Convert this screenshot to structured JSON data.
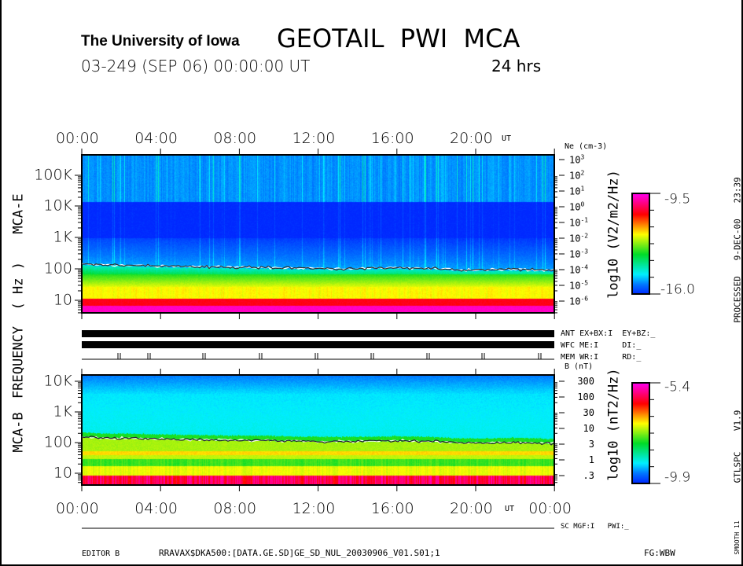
{
  "header": {
    "institution": "The University of Iowa",
    "title": "GEOTAIL  PWI  MCA",
    "date_line": "03-249 (SEP 06) 00:00:00 UT",
    "duration": "24 hrs"
  },
  "left_labels": {
    "mca_e": "MCA-E",
    "frequency": "FREQUENCY  ( Hz )",
    "mca_b": "MCA-B"
  },
  "right_side": {
    "processed": "PROCESSED   9-DEC-00   23:39",
    "version": "GTLSPC    V1.9",
    "smooth": "SMOOTH 11"
  },
  "status": {
    "ant": "ANT EX+BX:I  EY+BZ:_",
    "wfc": "WFC ME:I     DI:_",
    "mem": "MEM WR:I     RD:_",
    "sc": "SC MGF:I   PWI:_"
  },
  "footer": {
    "editor": "EDITOR B",
    "file": "RRAVAX$DKA500:[DATA.GE.SD]GE_SD_NUL_20030906_V01.S01;1",
    "fg": "FG:WBW"
  },
  "chart_data": [
    {
      "type": "heatmap",
      "name": "MCA-E",
      "x_ticks": [
        "00:00",
        "04:00",
        "08:00",
        "12:00",
        "16:00",
        "20:00"
      ],
      "x_unit": "UT",
      "xlim_hours": [
        0,
        24
      ],
      "y_ticks": [
        "100K",
        "10K",
        "1K",
        "100",
        "10"
      ],
      "ylabel": "FREQUENCY (Hz)",
      "ylim_hz": [
        5,
        350000
      ],
      "right_axis": {
        "label": "Ne (cm-3)",
        "ticks": [
          "10^3",
          "10^2",
          "10^1",
          "10^0",
          "10^-1",
          "10^-2",
          "10^-3",
          "10^-4",
          "10^-5",
          "10^-6"
        ]
      },
      "colorbar": {
        "label": "log10 (V2/m2/Hz)",
        "max": "-9.5",
        "min": "-16.0"
      },
      "trace_hz": [
        150,
        140,
        140,
        135,
        130,
        128,
        125,
        122,
        120,
        118,
        115,
        112,
        110,
        108,
        110,
        112,
        115,
        112,
        108,
        100,
        98,
        100,
        102,
        98,
        95
      ]
    },
    {
      "type": "heatmap",
      "name": "MCA-B",
      "x_ticks": [
        "00:00",
        "04:00",
        "08:00",
        "12:00",
        "16:00",
        "20:00",
        "00:00"
      ],
      "x_unit": "UT",
      "xlim_hours": [
        0,
        24
      ],
      "y_ticks": [
        "10K",
        "1K",
        "100",
        "10"
      ],
      "ylim_hz": [
        5,
        12000
      ],
      "right_axis": {
        "label": "B (nT)",
        "ticks": [
          "300",
          "100",
          "30",
          "10",
          "3",
          "1",
          ".3"
        ]
      },
      "colorbar": {
        "label": "log10 (nT2/Hz)",
        "max": "-5.4",
        "min": "-9.9"
      },
      "trace_hz": [
        150,
        140,
        140,
        135,
        130,
        128,
        125,
        122,
        120,
        118,
        115,
        112,
        110,
        108,
        110,
        112,
        115,
        112,
        108,
        100,
        98,
        100,
        102,
        98,
        95
      ]
    }
  ]
}
